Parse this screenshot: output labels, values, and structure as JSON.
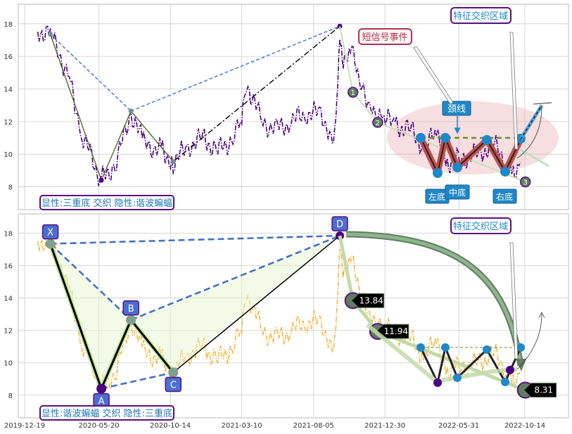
{
  "chart_data": [
    {
      "type": "line",
      "panel": "top",
      "title": "",
      "xlabel": "",
      "ylabel": "",
      "ylim": [
        6.6,
        19.2
      ],
      "y_ticks": [
        "8",
        "10",
        "12",
        "14",
        "16",
        "18"
      ],
      "grid": true,
      "series": [
        {
          "values_desc": "price series (dash-dot, purple)",
          "x": [
            "2020-01-15",
            "2020-02-10",
            "2020-03-20",
            "2020-04-15",
            "2020-05-25",
            "2020-06-25",
            "2020-07-25",
            "2020-08-20",
            "2020-09-25",
            "2020-10-20",
            "2020-11-20",
            "2020-12-20",
            "2021-01-20",
            "2021-02-20",
            "2021-03-10",
            "2021-03-20",
            "2021-04-20",
            "2021-05-20",
            "2021-06-20",
            "2021-07-20",
            "2021-08-20",
            "2021-09-10",
            "2021-09-20",
            "2021-09-28",
            "2021-10-05",
            "2021-10-20",
            "2021-11-10",
            "2021-12-01",
            "2021-12-25",
            "2022-01-20",
            "2022-02-20",
            "2022-03-20",
            "2022-04-15",
            "2022-05-10",
            "2022-06-10",
            "2022-07-10",
            "2022-08-10",
            "2022-09-05",
            "2022-09-20",
            "2022-10-05"
          ],
          "values": [
            17.6,
            17.3,
            14.8,
            11.2,
            8.4,
            9.5,
            12.6,
            10.6,
            10.3,
            9.5,
            10.5,
            11.0,
            10.2,
            11.0,
            12.0,
            14.4,
            12.0,
            11.5,
            12.0,
            12.5,
            12.5,
            11.2,
            11.5,
            17.8,
            15.0,
            16.6,
            14.0,
            13.0,
            12.2,
            11.8,
            11.5,
            10.5,
            11.2,
            9.5,
            9.8,
            10.0,
            10.6,
            9.7,
            9.0,
            9.5
          ]
        }
      ],
      "zigzag_points": [
        {
          "x": "2020-02-10",
          "y": 17.35
        },
        {
          "x": "2020-05-25",
          "y": 8.4
        },
        {
          "x": "2020-07-25",
          "y": 12.65
        },
        {
          "x": "2020-10-20",
          "y": 9.55
        },
        {
          "x": "2021-09-28",
          "y": 17.85
        }
      ],
      "markers": [
        {
          "label": "1",
          "x": "2021-10-25",
          "y": 13.8
        },
        {
          "label": "2",
          "x": "2021-12-15",
          "y": 11.95
        },
        {
          "label": "3",
          "x": "2022-10-15",
          "y": 8.3
        }
      ],
      "neckline_y": 10.6,
      "triple_bottom": {
        "left": "左底",
        "middle": "中底",
        "right": "右底",
        "neckline_label": "颈线"
      },
      "annotations": {
        "signal": "短信号事件",
        "feature_zone": "特征交织区域",
        "footer": "显性:三重底 交织 隐性:谐波蝙蝠"
      }
    },
    {
      "type": "line",
      "panel": "bottom",
      "title": "",
      "xlabel": "",
      "ylabel": "",
      "ylim": [
        6.6,
        19.2
      ],
      "y_ticks": [
        "8",
        "10",
        "12",
        "14",
        "16",
        "18"
      ],
      "grid": true,
      "x_ticks": [
        "2019-12-19",
        "2020-05-20",
        "2020-10-14",
        "2021-03-10",
        "2021-08-05",
        "2021-12-30",
        "2022-05-31",
        "2022-10-14"
      ],
      "xabc_points": [
        {
          "label": "X",
          "x": "2020-02-10",
          "y": 17.35
        },
        {
          "label": "A",
          "x": "2020-05-25",
          "y": 8.4
        },
        {
          "label": "B",
          "x": "2020-07-25",
          "y": 12.65
        },
        {
          "label": "C",
          "x": "2020-10-20",
          "y": 9.4
        },
        {
          "label": "D",
          "x": "2021-09-28",
          "y": 17.85
        }
      ],
      "price_tags": [
        {
          "label": "13.84",
          "x": "2021-10-25",
          "y": 13.84
        },
        {
          "label": "11.94",
          "x": "2021-12-15",
          "y": 11.94
        },
        {
          "label": "8.31",
          "x": "2022-10-15",
          "y": 8.31
        }
      ],
      "annotations": {
        "feature_zone": "特征交织区域",
        "footer": "显性:谐波蝙蝠 交织 隐性:三重底"
      }
    }
  ],
  "colors": {
    "price_top": "#4b0082",
    "price_bottom": "#f0b030",
    "grid": "#cccccc",
    "accent_blue": "#1f88c8",
    "bar_red": "#c0504d",
    "zigzag_green": "#556b2f",
    "dashed_blue": "#4472c4",
    "footer_text": "#1f77b4",
    "box_border": "#5a0f80"
  }
}
